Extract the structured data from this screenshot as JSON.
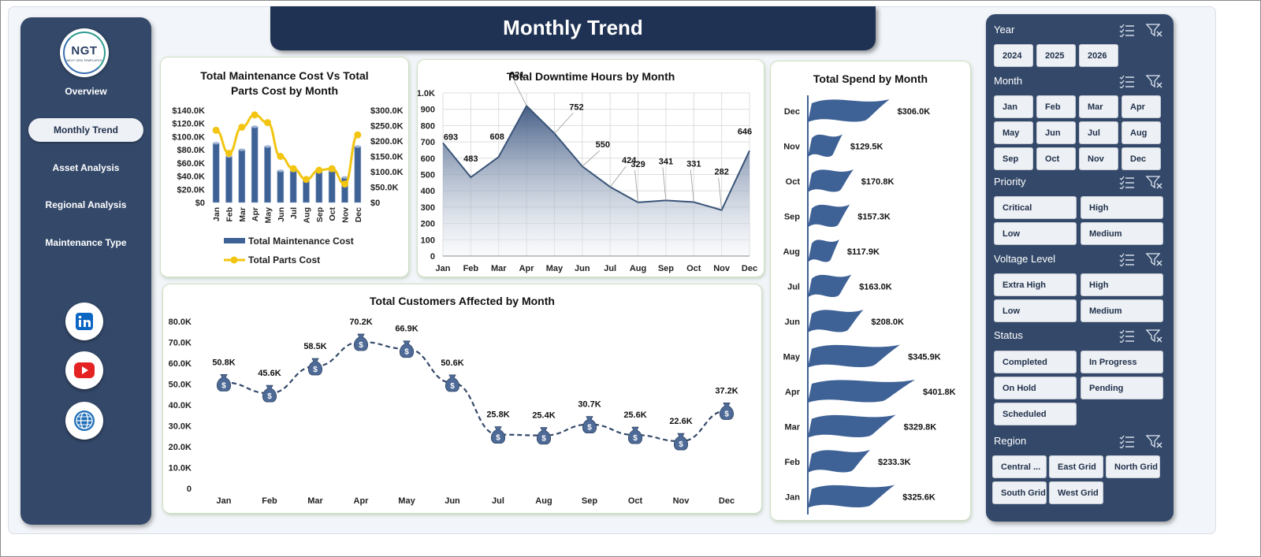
{
  "header": {
    "title": "Monthly Trend"
  },
  "logo": {
    "text": "NGT",
    "subtitle": "NEXT GEN TEMPLATES"
  },
  "nav": [
    {
      "label": "Overview",
      "active": false
    },
    {
      "label": "Monthly Trend",
      "active": true
    },
    {
      "label": "Asset Analysis",
      "active": false
    },
    {
      "label": "Regional Analysis",
      "active": false
    },
    {
      "label": "Maintenance Type",
      "active": false
    }
  ],
  "social": [
    {
      "icon": "linkedin-icon",
      "color": "#0a66c2"
    },
    {
      "icon": "youtube-icon",
      "color": "#e52222"
    },
    {
      "icon": "globe-icon",
      "color": "#1f4f8f"
    }
  ],
  "filters": [
    {
      "label": "Year",
      "options": [
        "2024",
        "2025",
        "2026"
      ]
    },
    {
      "label": "Month",
      "options": [
        "Jan",
        "Feb",
        "Mar",
        "Apr",
        "May",
        "Jun",
        "Jul",
        "Aug",
        "Sep",
        "Oct",
        "Nov",
        "Dec"
      ]
    },
    {
      "label": "Priority",
      "options": [
        "Critical",
        "High",
        "Low",
        "Medium"
      ]
    },
    {
      "label": "Voltage Level",
      "options": [
        "Extra High",
        "High",
        "Low",
        "Medium"
      ]
    },
    {
      "label": "Status",
      "options": [
        "Completed",
        "In Progress",
        "On Hold",
        "Pending",
        "Scheduled"
      ]
    },
    {
      "label": "Region",
      "options": [
        "Central ...",
        "East Grid",
        "North Grid",
        "South Grid",
        "West Grid"
      ]
    }
  ],
  "colors": {
    "navy": "#34496a",
    "bar": "#3f6296",
    "line": "#f2c512",
    "area_line": "#3a5478"
  },
  "chart_data": [
    {
      "id": "maintenance_vs_parts",
      "type": "bar",
      "title": "Total Maintenance Cost Vs Total Parts Cost by Month",
      "categories": [
        "Jan",
        "Feb",
        "Mar",
        "Apr",
        "May",
        "Jun",
        "Jul",
        "Aug",
        "Sep",
        "Oct",
        "Nov",
        "Dec"
      ],
      "series": [
        {
          "name": "Total Maintenance Cost",
          "kind": "bar",
          "axis": "left",
          "values": [
            90000,
            70000,
            80000,
            115000,
            85000,
            48000,
            48000,
            35000,
            50000,
            48000,
            38000,
            85000
          ]
        },
        {
          "name": "Total Parts Cost",
          "kind": "line",
          "axis": "right",
          "values": [
            235000,
            160000,
            245000,
            285000,
            260000,
            150000,
            110000,
            75000,
            105000,
            110000,
            60000,
            220000
          ]
        }
      ],
      "y_left_ticks": [
        "$140.0K",
        "$120.0K",
        "$100.0K",
        "$80.0K",
        "$60.0K",
        "$40.0K",
        "$20.0K",
        "$0"
      ],
      "y_right_ticks": [
        "$300.0K",
        "$250.0K",
        "$200.0K",
        "$150.0K",
        "$100.0K",
        "$50.0K",
        "$0"
      ],
      "ylim_left": [
        0,
        140000
      ],
      "ylim_right": [
        0,
        300000
      ],
      "legend": "bottom"
    },
    {
      "id": "downtime_hours",
      "type": "area",
      "title": "Total Downtime Hours by Month",
      "categories": [
        "Jan",
        "Feb",
        "Mar",
        "Apr",
        "May",
        "Jun",
        "Jul",
        "Aug",
        "Sep",
        "Oct",
        "Nov",
        "Dec"
      ],
      "values": [
        693,
        483,
        608,
        921,
        752,
        550,
        424,
        329,
        341,
        331,
        282,
        646
      ],
      "y_ticks": [
        "1.0K",
        "900",
        "800",
        "700",
        "600",
        "500",
        "400",
        "300",
        "200",
        "100",
        "0"
      ],
      "ylim": [
        0,
        1000
      ],
      "grid": true
    },
    {
      "id": "spend_by_month",
      "type": "bar",
      "orientation": "horizontal",
      "title": "Total Spend by Month",
      "categories": [
        "Dec",
        "Nov",
        "Oct",
        "Sep",
        "Aug",
        "Jul",
        "Jun",
        "May",
        "Apr",
        "Mar",
        "Feb",
        "Jan"
      ],
      "values": [
        306000,
        129500,
        170800,
        157300,
        117900,
        163000,
        208000,
        345900,
        401800,
        329800,
        233300,
        325600
      ],
      "labels": [
        "$306.0K",
        "$129.5K",
        "$170.8K",
        "$157.3K",
        "$117.9K",
        "$163.0K",
        "$208.0K",
        "$345.9K",
        "$401.8K",
        "$329.8K",
        "$233.3K",
        "$325.6K"
      ]
    },
    {
      "id": "customers_affected",
      "type": "line",
      "title": "Total Customers Affected by Month",
      "categories": [
        "Jan",
        "Feb",
        "Mar",
        "Apr",
        "May",
        "Jun",
        "Jul",
        "Aug",
        "Sep",
        "Oct",
        "Nov",
        "Dec"
      ],
      "values": [
        50800,
        45600,
        58500,
        70200,
        66900,
        50600,
        25800,
        25400,
        30700,
        25600,
        22600,
        37200
      ],
      "labels": [
        "50.8K",
        "45.6K",
        "58.5K",
        "70.2K",
        "66.9K",
        "50.6K",
        "25.8K",
        "25.4K",
        "30.7K",
        "25.6K",
        "22.6K",
        "37.2K"
      ],
      "y_ticks": [
        "80.0K",
        "70.0K",
        "60.0K",
        "50.0K",
        "40.0K",
        "30.0K",
        "20.0K",
        "10.0K",
        "0"
      ],
      "ylim": [
        0,
        80000
      ],
      "marker": "money-bag-icon"
    }
  ]
}
